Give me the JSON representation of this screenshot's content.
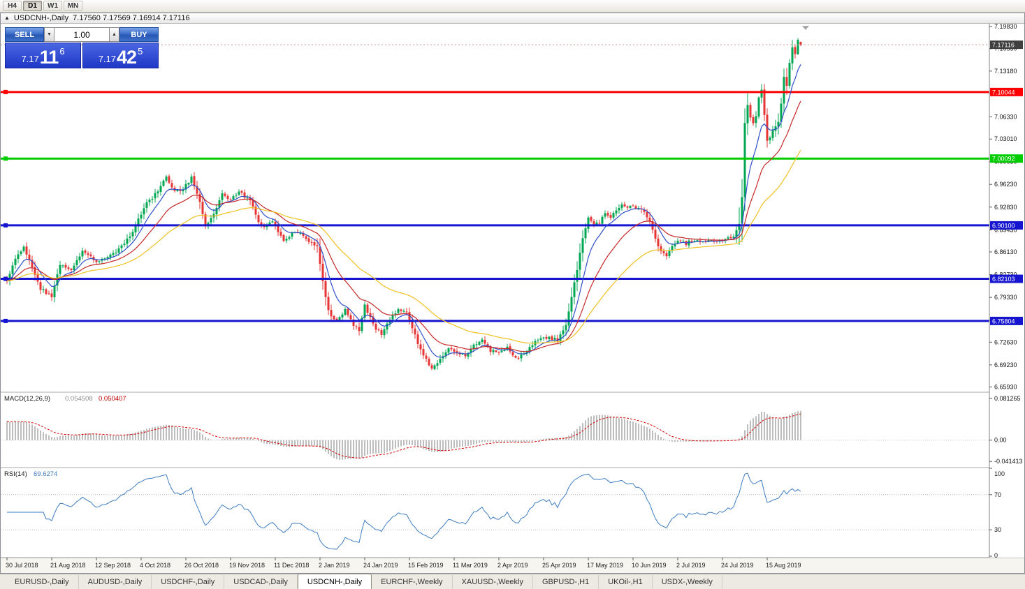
{
  "toolbar": {
    "timeframes": [
      {
        "label": "H4",
        "active": false
      },
      {
        "label": "D1",
        "active": true
      },
      {
        "label": "W1",
        "active": false
      },
      {
        "label": "MN",
        "active": false
      }
    ]
  },
  "window": {
    "collapse_icon": "▲",
    "title": "USDCNH-,Daily",
    "ohlc_text": "7.17560 7.17569 7.16914 7.17116"
  },
  "trade_panel": {
    "sell_label": "SELL",
    "buy_label": "BUY",
    "volume": "1.00",
    "spin_down_icon": "▼",
    "spin_up_icon": "▲",
    "sell_price": {
      "prefix": "7.17",
      "big": "11",
      "sup": "6"
    },
    "buy_price": {
      "prefix": "7.17",
      "big": "42",
      "sup": "5"
    }
  },
  "chart_data": {
    "type": "candlestick-ohlc",
    "symbol": "USDCNH",
    "timeframe": "Daily",
    "ohlc_current": {
      "open": "7.17560",
      "high": "7.17569",
      "low": "7.16914",
      "close": "7.17116"
    },
    "final_candle": {
      "o": 7.1756,
      "h": 7.17569,
      "l": 7.16914,
      "c": 7.17116
    },
    "up_color": "#00A651",
    "down_color": "#E53535",
    "y_axis_ticks": [
      "7.19830",
      "7.16530",
      "7.13180",
      "7.09830",
      "7.06330",
      "7.03010",
      "6.99630",
      "6.96230",
      "6.92830",
      "6.89430",
      "6.86130",
      "6.82730",
      "6.79330",
      "6.75930",
      "6.72630",
      "6.69230",
      "6.65930"
    ],
    "y_range": [
      6.6525,
      7.2005
    ],
    "x_labels": [
      "30 Jul 2018",
      "21 Aug 2018",
      "12 Sep 2018",
      "4 Oct 2018",
      "26 Oct 2018",
      "19 Nov 2018",
      "11 Dec 2018",
      "2 Jan 2019",
      "24 Jan 2019",
      "15 Feb 2019",
      "11 Mar 2019",
      "2 Apr 2019",
      "25 Apr 2019",
      "17 May 2019",
      "10 Jun 2019",
      "2 Jul 2019",
      "24 Jul 2019",
      "15 Aug 2019"
    ],
    "candles_per_label": 16,
    "candle_count": 285,
    "anchor_format": "[candle_index, close_price]",
    "price_path_anchors": [
      [
        0,
        6.82
      ],
      [
        3,
        6.852
      ],
      [
        6,
        6.868
      ],
      [
        9,
        6.836
      ],
      [
        12,
        6.806
      ],
      [
        16,
        6.796
      ],
      [
        19,
        6.842
      ],
      [
        23,
        6.836
      ],
      [
        27,
        6.862
      ],
      [
        32,
        6.846
      ],
      [
        36,
        6.852
      ],
      [
        40,
        6.866
      ],
      [
        44,
        6.884
      ],
      [
        49,
        6.928
      ],
      [
        53,
        6.948
      ],
      [
        57,
        6.972
      ],
      [
        60,
        6.95
      ],
      [
        63,
        6.956
      ],
      [
        66,
        6.972
      ],
      [
        69,
        6.938
      ],
      [
        71,
        6.902
      ],
      [
        74,
        6.918
      ],
      [
        77,
        6.948
      ],
      [
        80,
        6.94
      ],
      [
        83,
        6.952
      ],
      [
        87,
        6.938
      ],
      [
        91,
        6.898
      ],
      [
        95,
        6.906
      ],
      [
        99,
        6.878
      ],
      [
        103,
        6.892
      ],
      [
        107,
        6.882
      ],
      [
        111,
        6.868
      ],
      [
        113,
        6.82
      ],
      [
        115,
        6.772
      ],
      [
        118,
        6.758
      ],
      [
        121,
        6.774
      ],
      [
        124,
        6.752
      ],
      [
        126,
        6.744
      ],
      [
        128,
        6.782
      ],
      [
        131,
        6.752
      ],
      [
        134,
        6.738
      ],
      [
        137,
        6.76
      ],
      [
        140,
        6.776
      ],
      [
        143,
        6.77
      ],
      [
        146,
        6.736
      ],
      [
        149,
        6.705
      ],
      [
        152,
        6.688
      ],
      [
        155,
        6.7
      ],
      [
        158,
        6.718
      ],
      [
        161,
        6.712
      ],
      [
        164,
        6.706
      ],
      [
        167,
        6.722
      ],
      [
        170,
        6.728
      ],
      [
        173,
        6.714
      ],
      [
        176,
        6.71
      ],
      [
        179,
        6.718
      ],
      [
        182,
        6.702
      ],
      [
        185,
        6.708
      ],
      [
        188,
        6.722
      ],
      [
        191,
        6.734
      ],
      [
        194,
        6.732
      ],
      [
        197,
        6.73
      ],
      [
        200,
        6.752
      ],
      [
        202,
        6.792
      ],
      [
        204,
        6.836
      ],
      [
        206,
        6.882
      ],
      [
        208,
        6.912
      ],
      [
        210,
        6.902
      ],
      [
        212,
        6.906
      ],
      [
        214,
        6.918
      ],
      [
        216,
        6.914
      ],
      [
        218,
        6.924
      ],
      [
        220,
        6.934
      ],
      [
        222,
        6.928
      ],
      [
        224,
        6.93
      ],
      [
        226,
        6.926
      ],
      [
        228,
        6.922
      ],
      [
        230,
        6.906
      ],
      [
        232,
        6.88
      ],
      [
        234,
        6.862
      ],
      [
        236,
        6.856
      ],
      [
        238,
        6.87
      ],
      [
        240,
        6.88
      ],
      [
        243,
        6.874
      ],
      [
        246,
        6.88
      ],
      [
        249,
        6.876
      ],
      [
        252,
        6.878
      ],
      [
        255,
        6.88
      ],
      [
        258,
        6.882
      ],
      [
        260,
        6.886
      ],
      [
        262,
        6.902
      ],
      [
        263,
        6.944
      ],
      [
        264,
        7.052
      ],
      [
        265,
        7.082
      ],
      [
        266,
        7.064
      ],
      [
        267,
        7.054
      ],
      [
        268,
        7.066
      ],
      [
        269,
        7.092
      ],
      [
        270,
        7.104
      ],
      [
        271,
        7.064
      ],
      [
        272,
        7.028
      ],
      [
        273,
        7.032
      ],
      [
        274,
        7.042
      ],
      [
        275,
        7.048
      ],
      [
        276,
        7.056
      ],
      [
        277,
        7.082
      ],
      [
        278,
        7.125
      ],
      [
        279,
        7.108
      ],
      [
        280,
        7.145
      ],
      [
        281,
        7.168
      ],
      [
        282,
        7.156
      ],
      [
        283,
        7.178
      ],
      [
        284,
        7.17116
      ]
    ],
    "horizontal_lines": [
      {
        "price": 7.10044,
        "label": "7.10044",
        "color": "#FF0000",
        "width": 3
      },
      {
        "price": 7.00092,
        "label": "7.00092",
        "color": "#00CC00",
        "width": 3
      },
      {
        "price": 6.901,
        "label": "6.90100",
        "color": "#1515D0",
        "width": 3
      },
      {
        "price": 6.82103,
        "label": "6.82103",
        "color": "#1515D0",
        "width": 3
      },
      {
        "price": 6.75804,
        "label": "6.75804",
        "color": "#1515D0",
        "width": 3
      }
    ],
    "current_price": {
      "value": 7.17116,
      "label": "7.17116",
      "badge_color": "#3F3F3F"
    },
    "moving_averages": [
      {
        "name": "ma-fast",
        "period": 8,
        "color": "#2F4FC8"
      },
      {
        "name": "ma-medium",
        "period": 20,
        "color": "#C62828"
      },
      {
        "name": "ma-slow",
        "period": 45,
        "color": "#EFC020"
      }
    ]
  },
  "indicators": {
    "macd": {
      "label": "MACD(12,26,9)",
      "value_main": "0.054508",
      "value_signal": "0.050407",
      "params": [
        12,
        26,
        9
      ],
      "axis_ticks": [
        "0.081265",
        "0.00",
        "-0.041413"
      ],
      "axis_values": [
        0.081265,
        0,
        -0.041413
      ],
      "histogram_color": "#BDBDBD",
      "signal_color": "#D40000"
    },
    "rsi": {
      "label": "RSI(14)",
      "value_text": "69.6274",
      "period": 14,
      "axis_ticks": [
        "100",
        "70",
        "30",
        "0"
      ],
      "axis_values": [
        100,
        70,
        30,
        0
      ],
      "levels": [
        70,
        30
      ],
      "line_color": "#3E7CC0"
    }
  },
  "tabs": [
    {
      "label": "EURUSD-,Daily",
      "active": false
    },
    {
      "label": "AUDUSD-,Daily",
      "active": false
    },
    {
      "label": "USDCHF-,Daily",
      "active": false
    },
    {
      "label": "USDCAD-,Daily",
      "active": false
    },
    {
      "label": "USDCNH-,Daily",
      "active": true
    },
    {
      "label": "EURCHF-,Weekly",
      "active": false
    },
    {
      "label": "XAUUSD-,Weekly",
      "active": false
    },
    {
      "label": "GBPUSD-,H1",
      "active": false
    },
    {
      "label": "UKOil-,H1",
      "active": false
    },
    {
      "label": "USDX-,Weekly",
      "active": false
    }
  ]
}
